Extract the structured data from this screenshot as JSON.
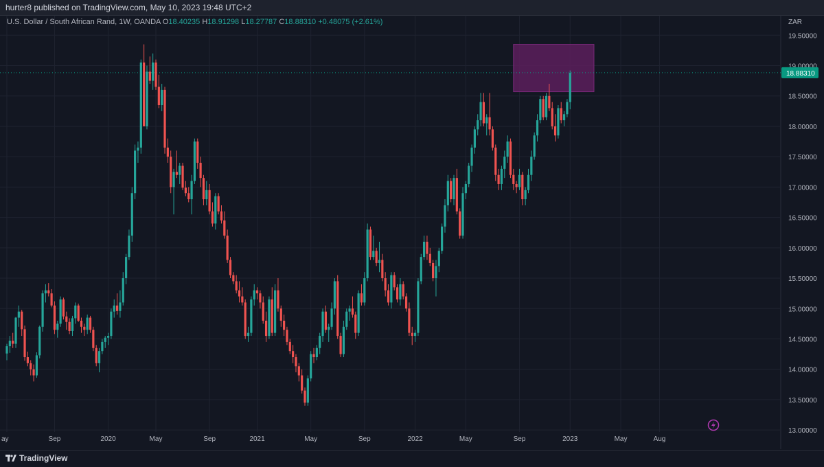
{
  "header": {
    "publish_text": "hurter8 published on TradingView.com, May 10, 2023 19:48 UTC+2"
  },
  "legend": {
    "symbol": "U.S. Dollar / South African Rand, 1W, OANDA",
    "o_label": "O",
    "o_value": "18.40235",
    "h_label": "H",
    "h_value": "18.91298",
    "l_label": "L",
    "l_value": "18.27787",
    "c_label": "C",
    "c_value": "18.88310",
    "change": "+0.48075 (+2.61%)"
  },
  "footer": {
    "brand": "TradingView"
  },
  "colors": {
    "background": "#131722",
    "up": "#26a69a",
    "down": "#ef5350",
    "zone": "#5c1f5c",
    "grid": "#1f2330",
    "price_tag": "#089981"
  },
  "icons": {
    "alert": "lightning-icon",
    "logo": "tradingview-logo-icon"
  },
  "chart_data": {
    "type": "candlestick",
    "currency_label": "ZAR",
    "ylim": [
      12.9,
      19.82
    ],
    "y_ticks": [
      "19.50000",
      "19.00000",
      "18.50000",
      "18.00000",
      "17.50000",
      "17.00000",
      "16.50000",
      "16.00000",
      "15.50000",
      "15.00000",
      "14.50000",
      "14.00000",
      "13.50000",
      "13.00000"
    ],
    "x_ticks": [
      "ay",
      "Sep",
      "2020",
      "May",
      "Sep",
      "2021",
      "May",
      "Sep",
      "2022",
      "May",
      "Sep",
      "2023",
      "May",
      "Aug"
    ],
    "last_price": "18.88310",
    "last_price_value": 18.8831,
    "zone": {
      "y_low": 18.57,
      "y_high": 19.35,
      "x_start_week": 170,
      "x_end_week": 197
    },
    "candles": [
      [
        14.26,
        14.42,
        14.15,
        14.38
      ],
      [
        14.38,
        14.55,
        14.27,
        14.47
      ],
      [
        14.47,
        14.6,
        14.35,
        14.42
      ],
      [
        14.42,
        14.86,
        14.35,
        14.85
      ],
      [
        14.85,
        15.05,
        14.7,
        14.95
      ],
      [
        14.95,
        14.98,
        14.55,
        14.66
      ],
      [
        14.66,
        14.72,
        14.14,
        14.2
      ],
      [
        14.2,
        14.29,
        14.05,
        14.1
      ],
      [
        14.1,
        14.15,
        13.9,
        14.0
      ],
      [
        14.0,
        14.08,
        13.8,
        13.9
      ],
      [
        13.9,
        14.28,
        13.86,
        14.23
      ],
      [
        14.23,
        14.72,
        14.18,
        14.7
      ],
      [
        14.7,
        15.3,
        14.62,
        15.25
      ],
      [
        15.25,
        15.4,
        15.1,
        15.3
      ],
      [
        15.3,
        15.42,
        15.2,
        15.25
      ],
      [
        15.25,
        15.32,
        15.02,
        15.05
      ],
      [
        15.05,
        15.12,
        14.58,
        14.65
      ],
      [
        14.65,
        14.8,
        14.52,
        14.75
      ],
      [
        14.75,
        15.2,
        14.7,
        15.15
      ],
      [
        15.15,
        15.18,
        14.82,
        14.87
      ],
      [
        14.87,
        14.95,
        14.65,
        14.78
      ],
      [
        14.78,
        14.84,
        14.58,
        14.63
      ],
      [
        14.63,
        14.88,
        14.55,
        14.84
      ],
      [
        14.84,
        15.1,
        14.75,
        15.05
      ],
      [
        15.05,
        15.08,
        14.78,
        14.8
      ],
      [
        14.8,
        14.85,
        14.6,
        14.7
      ],
      [
        14.7,
        14.75,
        14.55,
        14.65
      ],
      [
        14.65,
        14.9,
        14.58,
        14.85
      ],
      [
        14.85,
        14.88,
        14.6,
        14.65
      ],
      [
        14.65,
        14.7,
        14.3,
        14.35
      ],
      [
        14.35,
        14.4,
        14.05,
        14.1
      ],
      [
        14.1,
        14.35,
        13.95,
        14.3
      ],
      [
        14.3,
        14.5,
        14.25,
        14.45
      ],
      [
        14.45,
        14.55,
        14.35,
        14.52
      ],
      [
        14.52,
        14.6,
        14.4,
        14.55
      ],
      [
        14.55,
        15.0,
        14.5,
        14.95
      ],
      [
        14.95,
        15.15,
        14.85,
        15.05
      ],
      [
        15.05,
        15.25,
        14.9,
        14.96
      ],
      [
        14.96,
        15.3,
        14.85,
        15.1
      ],
      [
        15.1,
        15.6,
        15.05,
        15.5
      ],
      [
        15.5,
        15.9,
        15.4,
        15.85
      ],
      [
        15.85,
        16.3,
        15.8,
        16.2
      ],
      [
        16.2,
        17.0,
        16.1,
        16.9
      ],
      [
        16.9,
        17.7,
        16.8,
        17.6
      ],
      [
        17.6,
        17.75,
        17.4,
        17.65
      ],
      [
        17.65,
        19.1,
        17.55,
        19.05
      ],
      [
        19.05,
        19.35,
        18.0,
        18.0
      ],
      [
        18.0,
        19.0,
        17.95,
        18.9
      ],
      [
        18.9,
        19.15,
        18.7,
        18.75
      ],
      [
        18.75,
        19.2,
        18.6,
        19.05
      ],
      [
        19.05,
        19.1,
        18.6,
        18.65
      ],
      [
        18.65,
        18.85,
        18.3,
        18.35
      ],
      [
        18.35,
        18.7,
        18.25,
        18.6
      ],
      [
        18.6,
        18.65,
        17.55,
        17.65
      ],
      [
        17.65,
        17.8,
        17.4,
        17.5
      ],
      [
        17.5,
        17.6,
        16.9,
        17.0
      ],
      [
        17.0,
        17.3,
        16.55,
        17.25
      ],
      [
        17.25,
        17.6,
        17.15,
        17.2
      ],
      [
        17.2,
        17.4,
        17.05,
        17.35
      ],
      [
        17.35,
        17.4,
        16.95,
        16.99
      ],
      [
        16.99,
        17.1,
        16.85,
        16.9
      ],
      [
        16.9,
        17.0,
        16.75,
        16.8
      ],
      [
        16.8,
        17.2,
        16.55,
        17.1
      ],
      [
        17.1,
        17.8,
        17.05,
        17.75
      ],
      [
        17.75,
        17.8,
        17.3,
        17.4
      ],
      [
        17.4,
        17.5,
        17.0,
        17.15
      ],
      [
        17.15,
        17.2,
        16.7,
        16.8
      ],
      [
        16.8,
        17.1,
        16.7,
        16.95
      ],
      [
        16.95,
        17.05,
        16.55,
        16.6
      ],
      [
        16.6,
        16.75,
        16.35,
        16.4
      ],
      [
        16.4,
        16.9,
        16.3,
        16.85
      ],
      [
        16.85,
        16.9,
        16.55,
        16.6
      ],
      [
        16.6,
        16.7,
        16.4,
        16.45
      ],
      [
        16.45,
        16.6,
        16.15,
        16.2
      ],
      [
        16.2,
        16.3,
        15.75,
        15.8
      ],
      [
        15.8,
        15.85,
        15.5,
        15.55
      ],
      [
        15.55,
        15.6,
        15.4,
        15.45
      ],
      [
        15.45,
        15.55,
        15.25,
        15.3
      ],
      [
        15.3,
        15.45,
        15.1,
        15.2
      ],
      [
        15.2,
        15.35,
        15.05,
        15.1
      ],
      [
        15.1,
        15.15,
        14.5,
        14.55
      ],
      [
        14.55,
        14.7,
        14.45,
        14.6
      ],
      [
        14.6,
        15.2,
        14.55,
        15.15
      ],
      [
        15.15,
        15.4,
        15.05,
        15.3
      ],
      [
        15.3,
        15.35,
        15.15,
        15.25
      ],
      [
        15.25,
        15.3,
        15.0,
        15.1
      ],
      [
        15.1,
        15.2,
        14.75,
        14.8
      ],
      [
        14.8,
        14.95,
        14.45,
        14.55
      ],
      [
        14.55,
        15.2,
        14.5,
        15.15
      ],
      [
        15.15,
        15.35,
        14.55,
        14.6
      ],
      [
        14.6,
        15.4,
        14.55,
        15.3
      ],
      [
        15.3,
        15.5,
        14.95,
        15.0
      ],
      [
        15.0,
        15.05,
        14.7,
        14.8
      ],
      [
        14.8,
        14.9,
        14.55,
        14.65
      ],
      [
        14.65,
        14.7,
        14.4,
        14.45
      ],
      [
        14.45,
        14.5,
        14.25,
        14.3
      ],
      [
        14.3,
        14.4,
        14.1,
        14.2
      ],
      [
        14.2,
        14.25,
        13.95,
        14.05
      ],
      [
        14.05,
        14.1,
        13.8,
        13.9
      ],
      [
        13.9,
        14.0,
        13.6,
        13.65
      ],
      [
        13.65,
        13.7,
        13.4,
        13.45
      ],
      [
        13.45,
        13.9,
        13.4,
        13.85
      ],
      [
        13.85,
        14.3,
        13.8,
        14.25
      ],
      [
        14.25,
        14.35,
        14.1,
        14.2
      ],
      [
        14.2,
        14.4,
        14.15,
        14.35
      ],
      [
        14.35,
        14.6,
        14.25,
        14.55
      ],
      [
        14.55,
        15.0,
        14.45,
        14.95
      ],
      [
        14.95,
        15.05,
        14.6,
        14.65
      ],
      [
        14.65,
        14.75,
        14.45,
        14.7
      ],
      [
        14.7,
        15.1,
        14.65,
        15.0
      ],
      [
        15.0,
        15.5,
        14.9,
        15.45
      ],
      [
        15.45,
        15.55,
        14.5,
        14.55
      ],
      [
        14.55,
        14.6,
        14.2,
        14.25
      ],
      [
        14.25,
        14.8,
        14.2,
        14.7
      ],
      [
        14.7,
        15.0,
        14.65,
        14.95
      ],
      [
        14.95,
        15.05,
        14.8,
        15.0
      ],
      [
        15.0,
        15.2,
        14.85,
        14.9
      ],
      [
        14.9,
        14.95,
        14.5,
        14.6
      ],
      [
        14.6,
        15.3,
        14.55,
        15.25
      ],
      [
        15.25,
        15.4,
        15.05,
        15.1
      ],
      [
        15.1,
        15.6,
        15.05,
        15.5
      ],
      [
        15.5,
        16.4,
        15.45,
        16.3
      ],
      [
        16.3,
        16.35,
        15.8,
        15.85
      ],
      [
        15.85,
        16.2,
        15.8,
        15.95
      ],
      [
        15.95,
        16.0,
        15.7,
        15.75
      ],
      [
        15.75,
        16.1,
        15.6,
        15.8
      ],
      [
        15.8,
        15.9,
        15.45,
        15.5
      ],
      [
        15.5,
        15.6,
        15.2,
        15.3
      ],
      [
        15.3,
        15.4,
        15.05,
        15.1
      ],
      [
        15.1,
        15.6,
        15.0,
        15.55
      ],
      [
        15.55,
        15.6,
        15.3,
        15.35
      ],
      [
        15.35,
        15.4,
        15.1,
        15.15
      ],
      [
        15.15,
        15.5,
        15.05,
        15.4
      ],
      [
        15.4,
        15.45,
        15.15,
        15.2
      ],
      [
        15.2,
        15.25,
        14.95,
        15.0
      ],
      [
        15.0,
        15.1,
        14.55,
        14.6
      ],
      [
        14.6,
        14.7,
        14.4,
        14.55
      ],
      [
        14.55,
        14.65,
        14.45,
        14.6
      ],
      [
        14.6,
        15.5,
        14.55,
        15.45
      ],
      [
        15.45,
        15.9,
        15.4,
        15.85
      ],
      [
        15.85,
        16.2,
        15.8,
        16.1
      ],
      [
        16.1,
        16.2,
        15.8,
        15.9
      ],
      [
        15.9,
        16.0,
        15.7,
        15.75
      ],
      [
        15.75,
        15.8,
        15.45,
        15.5
      ],
      [
        15.5,
        15.8,
        15.2,
        15.7
      ],
      [
        15.7,
        16.0,
        15.6,
        15.95
      ],
      [
        15.95,
        16.4,
        15.9,
        16.35
      ],
      [
        16.35,
        16.8,
        16.25,
        16.7
      ],
      [
        16.7,
        17.2,
        16.6,
        17.1
      ],
      [
        17.1,
        17.15,
        16.75,
        16.8
      ],
      [
        16.8,
        17.2,
        16.7,
        17.15
      ],
      [
        17.15,
        17.3,
        16.55,
        16.6
      ],
      [
        16.6,
        16.65,
        16.15,
        16.2
      ],
      [
        16.2,
        17.0,
        16.15,
        16.9
      ],
      [
        16.9,
        17.1,
        16.8,
        17.05
      ],
      [
        17.05,
        17.4,
        17.0,
        17.35
      ],
      [
        17.35,
        17.7,
        17.25,
        17.65
      ],
      [
        17.65,
        18.0,
        17.55,
        17.95
      ],
      [
        17.95,
        18.2,
        17.85,
        18.1
      ],
      [
        18.1,
        18.55,
        18.0,
        18.4
      ],
      [
        18.4,
        18.55,
        18.0,
        18.05
      ],
      [
        18.05,
        18.2,
        17.85,
        18.15
      ],
      [
        18.15,
        18.55,
        17.85,
        17.95
      ],
      [
        17.95,
        18.0,
        17.6,
        17.65
      ],
      [
        17.65,
        17.7,
        17.1,
        17.2
      ],
      [
        17.2,
        17.3,
        16.95,
        17.05
      ],
      [
        17.05,
        17.35,
        16.95,
        17.3
      ],
      [
        17.3,
        17.6,
        17.15,
        17.5
      ],
      [
        17.5,
        17.85,
        17.4,
        17.75
      ],
      [
        17.75,
        17.8,
        17.15,
        17.2
      ],
      [
        17.2,
        17.3,
        16.95,
        17.05
      ],
      [
        17.05,
        17.1,
        16.9,
        17.0
      ],
      [
        17.0,
        17.3,
        16.95,
        17.2
      ],
      [
        17.2,
        17.25,
        16.7,
        16.8
      ],
      [
        16.8,
        17.0,
        16.7,
        16.95
      ],
      [
        16.95,
        17.3,
        16.9,
        17.2
      ],
      [
        17.2,
        17.6,
        17.1,
        17.5
      ],
      [
        17.5,
        17.9,
        17.45,
        17.85
      ],
      [
        17.85,
        18.2,
        17.75,
        18.1
      ],
      [
        18.1,
        18.5,
        18.05,
        18.45
      ],
      [
        18.45,
        18.5,
        18.1,
        18.15
      ],
      [
        18.15,
        18.55,
        18.1,
        18.5
      ],
      [
        18.5,
        18.7,
        18.25,
        18.3
      ],
      [
        18.3,
        18.4,
        17.95,
        18.0
      ],
      [
        18.0,
        18.2,
        17.75,
        17.85
      ],
      [
        17.85,
        18.35,
        17.8,
        18.3
      ],
      [
        18.3,
        18.4,
        18.05,
        18.1
      ],
      [
        18.1,
        18.25,
        18.0,
        18.2
      ],
      [
        18.2,
        18.45,
        18.15,
        18.4
      ],
      [
        18.4,
        18.92,
        18.28,
        18.88
      ]
    ]
  }
}
